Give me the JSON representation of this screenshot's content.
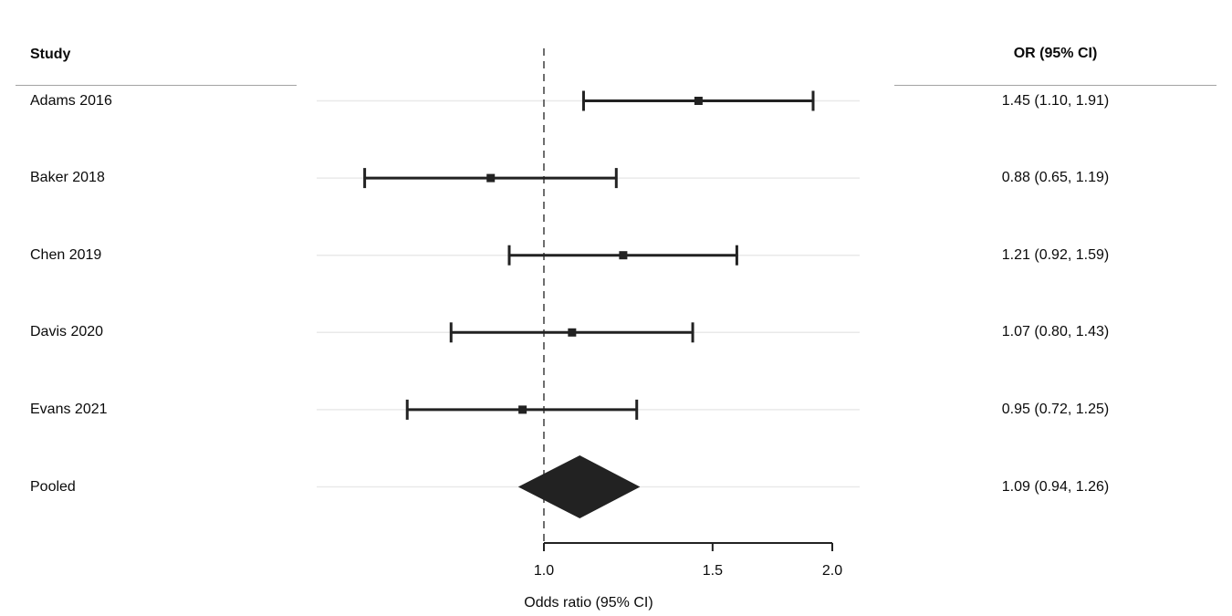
{
  "headers": {
    "study": "Study",
    "or_ci": "OR (95% CI)"
  },
  "chart_data": {
    "type": "forest",
    "x_scale": "log",
    "title": "",
    "xlabel": "Odds ratio (95% CI)",
    "x_range": [
      1.0,
      2.0
    ],
    "x_ticks": [
      {
        "value": 1.0,
        "label": "1.0"
      },
      {
        "value": 1.5,
        "label": "1.5"
      },
      {
        "value": 2.0,
        "label": "2.0"
      }
    ],
    "reference_line": 1.0,
    "grid": "row-lines",
    "studies": [
      {
        "label": "Adams 2016",
        "or": 1.45,
        "lo": 1.1,
        "hi": 1.91,
        "display": "1.45 (1.10, 1.91)"
      },
      {
        "label": "Baker 2018",
        "or": 0.88,
        "lo": 0.65,
        "hi": 1.19,
        "display": "0.88 (0.65, 1.19)"
      },
      {
        "label": "Chen 2019",
        "or": 1.21,
        "lo": 0.92,
        "hi": 1.59,
        "display": "1.21 (0.92, 1.59)"
      },
      {
        "label": "Davis 2020",
        "or": 1.07,
        "lo": 0.8,
        "hi": 1.43,
        "display": "1.07 (0.80, 1.43)"
      },
      {
        "label": "Evans 2021",
        "or": 0.95,
        "lo": 0.72,
        "hi": 1.25,
        "display": "0.95 (0.72, 1.25)"
      }
    ],
    "pooled": {
      "label": "Pooled",
      "or": 1.09,
      "lo": 0.94,
      "hi": 1.26,
      "display": "1.09 (0.94, 1.26)"
    }
  },
  "colors": {
    "ink": "#222222",
    "text": "#0a0a0a",
    "gridline": "#e9e9e9",
    "header_rule": "#a3a3a3",
    "reference_line": "#6e6e6e",
    "background": "#ffffff"
  }
}
